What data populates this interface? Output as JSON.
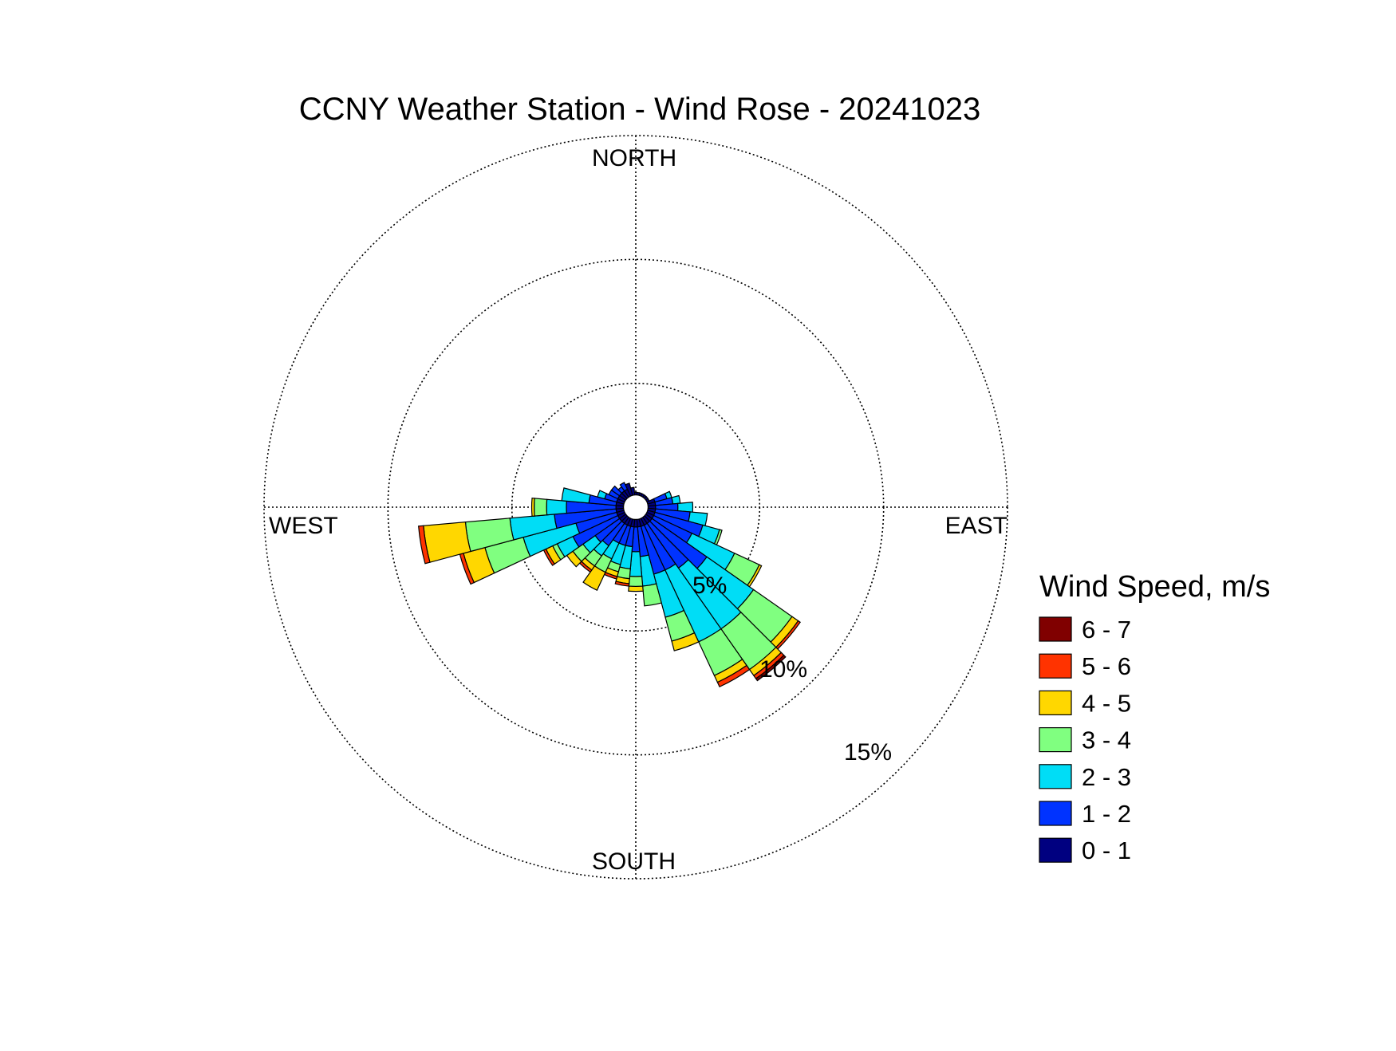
{
  "chart_data": {
    "type": "wind-rose",
    "title": "CCNY Weather Station - Wind Rose - 20241023",
    "direction_labels": {
      "north": "NORTH",
      "south": "SOUTH",
      "east": "EAST",
      "west": "WEST"
    },
    "radial_ticks": [
      {
        "value": 5,
        "label": "5%"
      },
      {
        "value": 10,
        "label": "10%"
      },
      {
        "value": 15,
        "label": "15%"
      }
    ],
    "rmax_percent": 15,
    "calm_hole_percent": 0.4,
    "sector_width_deg": 10,
    "grid": true,
    "legend": {
      "title": "Wind Speed, m/s",
      "placement": "right",
      "order": "top-to-bottom highest first",
      "entries": [
        {
          "label": "6 - 7",
          "color": "#800000"
        },
        {
          "label": "5 - 6",
          "color": "#ff3300"
        },
        {
          "label": "4 - 5",
          "color": "#ffd700"
        },
        {
          "label": "3 - 4",
          "color": "#80ff80"
        },
        {
          "label": "2 - 3",
          "color": "#00ddf6"
        },
        {
          "label": "1 - 2",
          "color": "#0033ff"
        },
        {
          "label": "0 - 1",
          "color": "#000080"
        }
      ]
    },
    "bin_labels": [
      "0 - 1",
      "1 - 2",
      "2 - 3",
      "3 - 4",
      "4 - 5",
      "5 - 6",
      "6 - 7"
    ],
    "sectors": [
      {
        "dir": 0,
        "cum": [
          0.6
        ]
      },
      {
        "dir": 10,
        "cum": [
          0.6
        ]
      },
      {
        "dir": 20,
        "cum": [
          0.6
        ]
      },
      {
        "dir": 30,
        "cum": [
          0.6
        ]
      },
      {
        "dir": 40,
        "cum": [
          0.6
        ]
      },
      {
        "dir": 50,
        "cum": [
          0.6
        ]
      },
      {
        "dir": 60,
        "cum": [
          0.6
        ]
      },
      {
        "dir": 70,
        "cum": [
          0.8,
          1.3,
          1.5
        ]
      },
      {
        "dir": 80,
        "cum": [
          0.8,
          1.5,
          1.8
        ]
      },
      {
        "dir": 90,
        "cum": [
          0.8,
          1.7,
          2.3
        ]
      },
      {
        "dir": 100,
        "cum": [
          0.8,
          2.2,
          2.9
        ]
      },
      {
        "dir": 110,
        "cum": [
          0.8,
          2.8,
          3.5,
          3.6
        ]
      },
      {
        "dir": 120,
        "cum": [
          0.8,
          2.5,
          4.4,
          5.5,
          5.6
        ]
      },
      {
        "dir": 130,
        "cum": [
          0.8,
          3.5,
          5.8,
          7.7,
          8.0,
          8.1
        ]
      },
      {
        "dir": 140,
        "cum": [
          0.8,
          3.0,
          6.0,
          8.0,
          8.3,
          8.45,
          8.55
        ]
      },
      {
        "dir": 150,
        "cum": [
          0.8,
          2.8,
          6.0,
          7.5,
          7.8,
          8.0
        ]
      },
      {
        "dir": 160,
        "cum": [
          0.8,
          2.8,
          4.6,
          5.6,
          6.0
        ]
      },
      {
        "dir": 170,
        "cum": [
          0.8,
          2.0,
          3.2,
          4.0
        ]
      },
      {
        "dir": 180,
        "cum": [
          0.8,
          1.8,
          2.8,
          3.2,
          3.4
        ]
      },
      {
        "dir": 190,
        "cum": [
          0.8,
          1.6,
          2.5,
          2.9,
          3.1,
          3.2
        ]
      },
      {
        "dir": 200,
        "cum": [
          0.8,
          1.6,
          2.4,
          2.7,
          2.9,
          3.0
        ]
      },
      {
        "dir": 210,
        "cum": [
          0.8,
          1.6,
          2.3,
          2.9,
          3.7
        ]
      },
      {
        "dir": 220,
        "cum": [
          0.8,
          1.9,
          2.4,
          2.9,
          3.1,
          3.2
        ]
      },
      {
        "dir": 230,
        "cum": [
          0.8,
          2.0,
          2.6,
          3.1,
          3.4
        ]
      },
      {
        "dir": 240,
        "cum": [
          0.8,
          2.8,
          3.5,
          3.7,
          4.0,
          4.1
        ]
      },
      {
        "dir": 250,
        "cum": [
          0.8,
          2.5,
          4.7,
          6.3,
          7.2,
          7.35
        ]
      },
      {
        "dir": 260,
        "cum": [
          0.8,
          3.3,
          5.1,
          6.9,
          8.6,
          8.8
        ]
      },
      {
        "dir": 270,
        "cum": [
          0.8,
          2.8,
          3.6,
          4.1,
          4.2
        ]
      },
      {
        "dir": 280,
        "cum": [
          0.8,
          1.9,
          3.0
        ]
      },
      {
        "dir": 290,
        "cum": [
          0.8,
          1.3,
          1.6
        ]
      },
      {
        "dir": 300,
        "cum": [
          0.8,
          1.2
        ]
      },
      {
        "dir": 310,
        "cum": [
          0.8,
          1.2
        ]
      },
      {
        "dir": 320,
        "cum": [
          0.8,
          1.0
        ]
      },
      {
        "dir": 330,
        "cum": [
          0.8,
          1.1
        ]
      },
      {
        "dir": 340,
        "cum": [
          1.0
        ]
      },
      {
        "dir": 350,
        "cum": [
          0.8
        ]
      }
    ]
  }
}
